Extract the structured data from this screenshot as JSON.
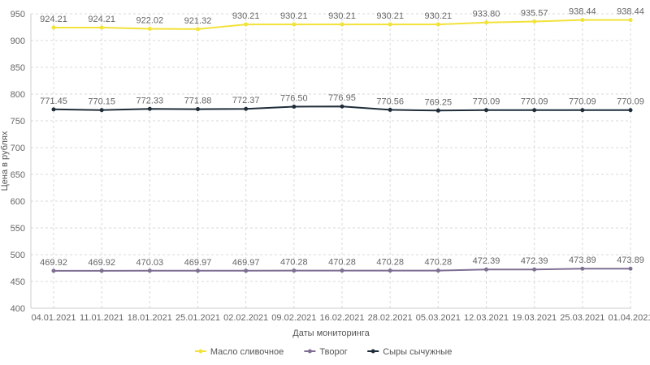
{
  "chart_data": {
    "type": "line",
    "xlabel": "Даты мониторинга",
    "ylabel": "Цена в рублях",
    "ylim": [
      400,
      950
    ],
    "yticks": [
      400,
      450,
      500,
      550,
      600,
      650,
      700,
      750,
      800,
      850,
      900,
      950
    ],
    "grid": true,
    "legend_position": "bottom",
    "categories": [
      "04.01.2021",
      "11.01.2021",
      "18.01.2021",
      "25.01.2021",
      "02.02.2021",
      "09.02.2021",
      "16.02.2021",
      "28.02.2021",
      "05.03.2021",
      "12.03.2021",
      "19.03.2021",
      "25.03.2021",
      "01.04.2021"
    ],
    "series": [
      {
        "name": "Масло сливочное",
        "color": "#f2e23a",
        "values": [
          924.21,
          924.21,
          922.02,
          921.32,
          930.21,
          930.21,
          930.21,
          930.21,
          930.21,
          933.8,
          935.57,
          938.44,
          938.44
        ],
        "labels": [
          "924.21",
          "924.21",
          "922.02",
          "921.32",
          "930.21",
          "930.21",
          "930.21",
          "930.21",
          "930.21",
          "933.80",
          "935.57",
          "938.44",
          "938.44"
        ]
      },
      {
        "name": "Творог",
        "color": "#7e6f93",
        "values": [
          469.92,
          469.92,
          470.03,
          469.97,
          469.97,
          470.28,
          470.28,
          470.28,
          470.28,
          472.39,
          472.39,
          473.89,
          473.89
        ],
        "labels": [
          "469.92",
          "469.92",
          "470.03",
          "469.97",
          "469.97",
          "470.28",
          "470.28",
          "470.28",
          "470.28",
          "472.39",
          "472.39",
          "473.89",
          "473.89"
        ]
      },
      {
        "name": "Сыры сычужные",
        "color": "#1f2d3a",
        "values": [
          771.45,
          770.15,
          772.33,
          771.88,
          772.37,
          776.5,
          776.95,
          770.56,
          769.25,
          770.09,
          770.09,
          770.09,
          770.09
        ],
        "labels": [
          "771.45",
          "770.15",
          "772.33",
          "771.88",
          "772.37",
          "776.50",
          "776.95",
          "770.56",
          "769.25",
          "770.09",
          "770.09",
          "770.09",
          "770.09"
        ]
      }
    ]
  }
}
